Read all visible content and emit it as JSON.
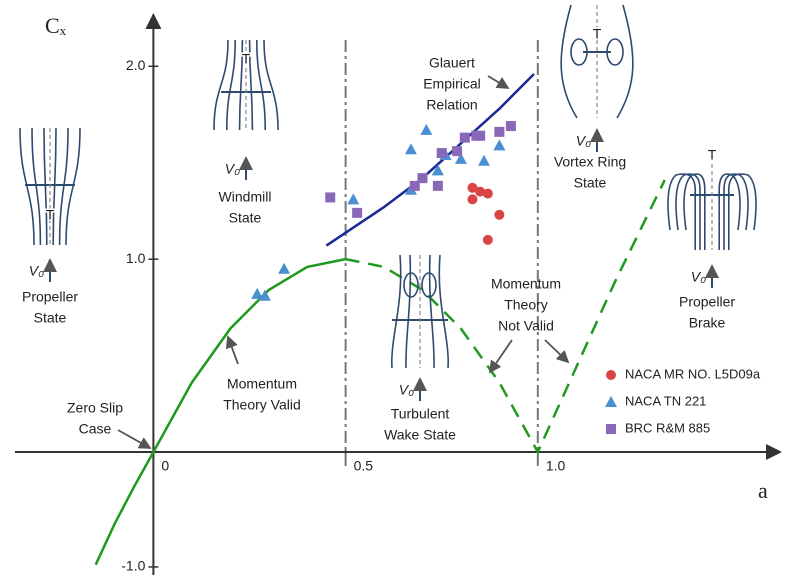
{
  "chart_data": {
    "type": "scatter",
    "y_label": "Cₓ",
    "x_label": "a",
    "xlim": [
      -0.36,
      1.63
    ],
    "ylim": [
      -1.07,
      2.24
    ],
    "xticks": [
      0,
      0.5,
      {
        "value": 1,
        "label": "1.0"
      }
    ],
    "yticks": [
      {
        "value": -1,
        "label": "-1.0"
      },
      {
        "value": 1,
        "label": "1.0"
      },
      {
        "value": 2,
        "label": "2.0"
      }
    ],
    "curves": [
      {
        "color": "#1f9a1f",
        "style": "solid",
        "x": [
          -0.15,
          -0.1,
          -0.05,
          0,
          0.1,
          0.2,
          0.3,
          0.4,
          0.5
        ],
        "values": [
          -0.98,
          -0.62,
          -0.3,
          0,
          0.36,
          0.64,
          0.84,
          0.96,
          1.0
        ]
      },
      {
        "color": "#1f9a1f",
        "style": "dashed",
        "x": [
          0.5,
          0.6,
          0.7,
          0.8,
          0.9,
          1.0,
          1.1,
          1.2,
          1.33
        ],
        "values": [
          1.0,
          0.96,
          0.84,
          0.64,
          0.36,
          0,
          0.44,
          0.88,
          1.41
        ]
      },
      {
        "color": "#1c2a96",
        "style": "solid",
        "x": [
          0.45,
          0.6,
          0.7,
          0.8,
          0.9,
          0.99
        ],
        "values": [
          1.07,
          1.27,
          1.42,
          1.6,
          1.78,
          1.96
        ]
      }
    ],
    "series": [
      {
        "name": "NACA MR NO. L5D09a",
        "color": "#d94545",
        "marker": "circle",
        "x": [
          0.83,
          0.85,
          0.87,
          0.83,
          0.9,
          0.87
        ],
        "values": [
          1.37,
          1.35,
          1.34,
          1.31,
          1.23,
          1.1
        ]
      },
      {
        "name": "NACA TN 221",
        "color": "#4a8fd0",
        "marker": "triangle",
        "x": [
          0.27,
          0.29,
          0.34,
          0.52,
          0.67,
          0.71,
          0.67,
          0.74,
          0.8,
          0.86,
          0.9,
          0.76
        ],
        "values": [
          0.82,
          0.81,
          0.95,
          1.31,
          1.57,
          1.67,
          1.36,
          1.46,
          1.52,
          1.51,
          1.59,
          1.54
        ]
      },
      {
        "name": "BRC R&M 885",
        "color": "#8a68b8",
        "marker": "square",
        "x": [
          0.46,
          0.53,
          0.68,
          0.74,
          0.7,
          0.75,
          0.79,
          0.81,
          0.84,
          0.85,
          0.9,
          0.93
        ],
        "values": [
          1.32,
          1.24,
          1.38,
          1.38,
          1.42,
          1.55,
          1.56,
          1.63,
          1.64,
          1.64,
          1.66,
          1.69
        ]
      }
    ],
    "annotations": [
      {
        "lines": [
          "Propeller",
          "State"
        ]
      },
      {
        "lines": [
          "Windmill",
          "State"
        ]
      },
      {
        "lines": [
          "Turbulent",
          "Wake State"
        ]
      },
      {
        "lines": [
          "Vortex Ring",
          "State"
        ]
      },
      {
        "lines": [
          "Propeller",
          "Brake"
        ]
      },
      {
        "lines": [
          "Glauert",
          "Empirical",
          "Relation"
        ]
      },
      {
        "lines": [
          "Momentum",
          "Theory Valid"
        ]
      },
      {
        "lines": [
          "Momentum",
          "Theory",
          "Not Valid"
        ]
      },
      {
        "lines": [
          "Zero Slip",
          "Case"
        ]
      }
    ],
    "icons": [
      {
        "thrust": "T",
        "velocity": "V₀"
      },
      {
        "thrust": "T",
        "velocity": "V₀"
      },
      {
        "velocity": "V₀"
      },
      {
        "thrust": "T",
        "velocity": "V₀"
      },
      {
        "thrust": "T",
        "velocity": "V₀"
      }
    ]
  }
}
